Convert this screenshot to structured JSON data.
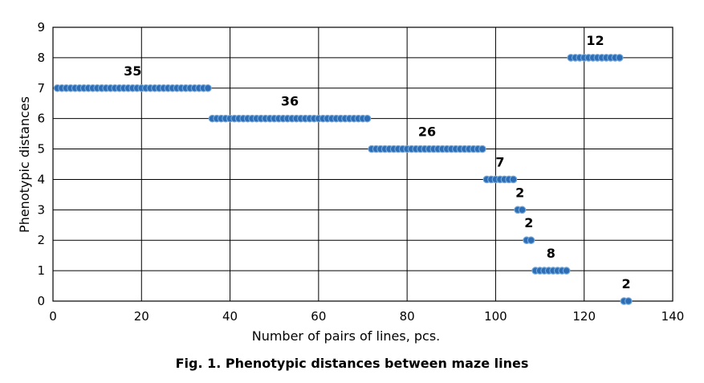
{
  "chart_data": {
    "type": "scatter",
    "caption": "Fig. 1. Phenotypic distances between maze lines",
    "xlabel": "Number of pairs of lines, pcs.",
    "ylabel": "Phenotypic distances",
    "xlim": [
      0,
      140
    ],
    "ylim": [
      0,
      9
    ],
    "x_ticks": [
      0,
      20,
      40,
      60,
      80,
      100,
      120,
      140
    ],
    "y_ticks": [
      0,
      1,
      2,
      3,
      4,
      5,
      6,
      7,
      8,
      9
    ],
    "grid": true,
    "marker_color": "#2E6DB4",
    "marker_edge_color": "#6FA8DC",
    "groups": [
      {
        "distance": 7,
        "count": 35,
        "x_start": 1,
        "x_end": 35,
        "label": "35"
      },
      {
        "distance": 6,
        "count": 36,
        "x_start": 36,
        "x_end": 71,
        "label": "36"
      },
      {
        "distance": 5,
        "count": 26,
        "x_start": 72,
        "x_end": 97,
        "label": "26"
      },
      {
        "distance": 4,
        "count": 7,
        "x_start": 98,
        "x_end": 104,
        "label": "7"
      },
      {
        "distance": 3,
        "count": 2,
        "x_start": 105,
        "x_end": 106,
        "label": "2"
      },
      {
        "distance": 2,
        "count": 2,
        "x_start": 107,
        "x_end": 108,
        "label": "2"
      },
      {
        "distance": 1,
        "count": 8,
        "x_start": 109,
        "x_end": 116,
        "label": "8"
      },
      {
        "distance": 8,
        "count": 12,
        "x_start": 117,
        "x_end": 128,
        "label": "12"
      },
      {
        "distance": 0,
        "count": 2,
        "x_start": 129,
        "x_end": 130,
        "label": "2"
      }
    ]
  }
}
